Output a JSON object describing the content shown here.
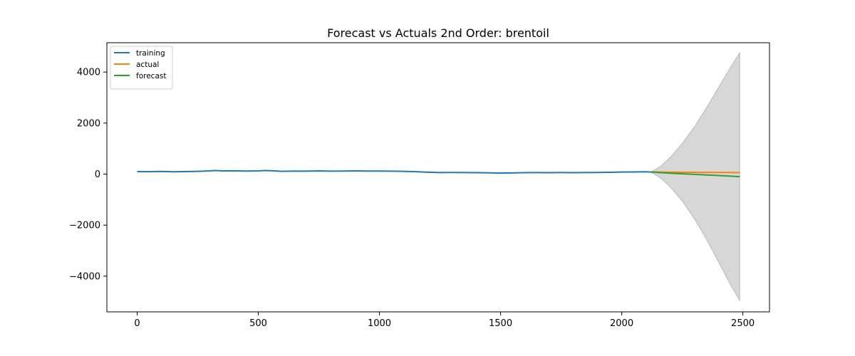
{
  "chart_data": {
    "type": "line",
    "title": "Forecast vs Actuals 2nd Order: brentoil",
    "xlabel": "",
    "ylabel": "",
    "xlim": [
      -125,
      2610
    ],
    "ylim": [
      -5400,
      5150
    ],
    "x_ticks": [
      0,
      500,
      1000,
      1500,
      2000,
      2500
    ],
    "x_tick_labels": [
      "0",
      "500",
      "1000",
      "1500",
      "2000",
      "2500"
    ],
    "y_ticks": [
      4000,
      2000,
      0,
      -2000,
      -4000
    ],
    "y_tick_labels": [
      "4000",
      "2000",
      "0",
      "−2000",
      "−4000"
    ],
    "grid": false,
    "legend_position": "top-left",
    "series": [
      {
        "name": "training",
        "color": "#1f77b4",
        "x": [
          0,
          50,
          100,
          150,
          200,
          250,
          300,
          325,
          350,
          400,
          450,
          500,
          530,
          560,
          600,
          650,
          700,
          750,
          800,
          850,
          900,
          950,
          1000,
          1050,
          1100,
          1150,
          1200,
          1250,
          1300,
          1350,
          1400,
          1450,
          1500,
          1550,
          1600,
          1650,
          1700,
          1750,
          1800,
          1850,
          1900,
          1950,
          2000,
          2050,
          2100,
          2120
        ],
        "y": [
          100,
          95,
          105,
          90,
          100,
          110,
          125,
          140,
          125,
          130,
          120,
          125,
          140,
          130,
          110,
          120,
          115,
          125,
          115,
          120,
          125,
          120,
          118,
          115,
          110,
          95,
          75,
          60,
          65,
          60,
          55,
          50,
          40,
          45,
          55,
          60,
          55,
          60,
          55,
          60,
          65,
          70,
          80,
          85,
          90,
          80
        ]
      },
      {
        "name": "actual",
        "color": "#ff7f0e",
        "x": [
          2120,
          2200,
          2300,
          2400,
          2487
        ],
        "y": [
          80,
          75,
          70,
          65,
          60
        ]
      },
      {
        "name": "forecast",
        "color": "#2ca02c",
        "x": [
          2120,
          2200,
          2300,
          2400,
          2487
        ],
        "y": [
          80,
          35,
          -10,
          -55,
          -100
        ]
      }
    ],
    "confidence_band": {
      "color": "#d3d3d3",
      "x": [
        2120,
        2160,
        2200,
        2250,
        2300,
        2350,
        2400,
        2450,
        2487
      ],
      "upper": [
        80,
        300,
        650,
        1200,
        1850,
        2600,
        3400,
        4200,
        4750
      ],
      "lower": [
        80,
        -150,
        -500,
        -1050,
        -1750,
        -2550,
        -3450,
        -4350,
        -4950
      ]
    }
  }
}
